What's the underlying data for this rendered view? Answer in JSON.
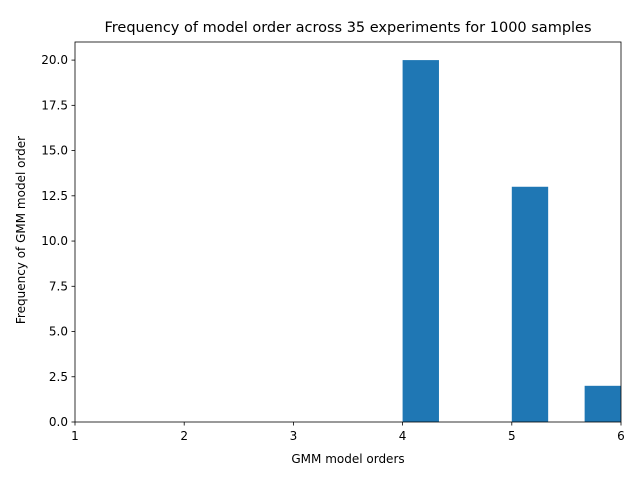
{
  "chart_data": {
    "type": "bar",
    "title": "Frequency of model order across 35 experiments for 1000 samples",
    "xlabel": "GMM model orders",
    "ylabel": "Frequency of GMM model order",
    "xlim": [
      1,
      6
    ],
    "ylim": [
      0,
      21
    ],
    "x_ticks": [
      1,
      2,
      3,
      4,
      5,
      6
    ],
    "y_ticks": [
      0.0,
      2.5,
      5.0,
      7.5,
      10.0,
      12.5,
      15.0,
      17.5,
      20.0
    ],
    "x_tick_labels": [
      "1",
      "2",
      "3",
      "4",
      "5",
      "6"
    ],
    "y_tick_labels": [
      "0.0",
      "2.5",
      "5.0",
      "7.5",
      "10.0",
      "12.5",
      "15.0",
      "17.5",
      "20.0"
    ],
    "bars": [
      {
        "x_start": 4.0,
        "x_end": 4.333,
        "value": 20
      },
      {
        "x_start": 5.0,
        "x_end": 5.333,
        "value": 13
      },
      {
        "x_start": 5.667,
        "x_end": 6.0,
        "value": 2
      }
    ],
    "bar_color": "#1f77b4",
    "grid": false,
    "legend": false
  }
}
